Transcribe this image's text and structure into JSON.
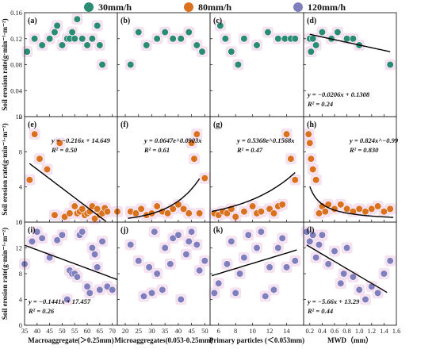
{
  "legend": [
    {
      "label": "30mm/h",
      "color": "#2a8c73"
    },
    {
      "label": "80mm/h",
      "color": "#d9711f"
    },
    {
      "label": "120mm/h",
      "color": "#7f7fbd"
    }
  ],
  "row_ylabels": [
    "Soil erosion rate(g·min⁻¹·m⁻²)",
    "Soil erosion rate(g·min⁻¹·m⁻²)",
    "Soil erosion rate(g·min⁻¹·m⁻²)"
  ],
  "col_xlabels": [
    "Macroaggregate(＞0.25mm)",
    "Microaggregates(0.053-0.25mm)",
    "Primary particles (＜0.053mm)",
    "MWD（mm）"
  ],
  "rows": [
    {
      "ylim": [
        0,
        0.16
      ],
      "yticks": [
        "0",
        "0.04",
        "0.08",
        "0.12",
        "0.16"
      ],
      "ytickvals": [
        0,
        0.04,
        0.08,
        0.12,
        0.16
      ]
    },
    {
      "ylim": [
        0,
        12
      ],
      "yticks": [
        "0",
        "4",
        "8",
        "12"
      ],
      "ytickvals": [
        0,
        4,
        8,
        12
      ]
    },
    {
      "ylim": [
        0,
        16
      ],
      "yticks": [
        "0",
        "4",
        "8",
        "12",
        "16"
      ],
      "ytickvals": [
        0,
        4,
        8,
        12,
        16
      ]
    }
  ],
  "cols": [
    {
      "xlim": [
        35,
        72
      ],
      "xticks": [
        "35",
        "40",
        "45",
        "50",
        "55",
        "60",
        "65",
        "70"
      ],
      "xtickvals": [
        35,
        40,
        45,
        50,
        55,
        60,
        65,
        70
      ]
    },
    {
      "xlim": [
        17,
        52
      ],
      "xticks": [
        "20",
        "25",
        "30",
        "35",
        "40",
        "45",
        "50"
      ],
      "xtickvals": [
        20,
        25,
        30,
        35,
        40,
        45,
        50
      ]
    },
    {
      "xlim": [
        5,
        16
      ],
      "xticks": [
        "6",
        "8",
        "10",
        "12",
        "14"
      ],
      "xtickvals": [
        6,
        8,
        10,
        12,
        14
      ]
    },
    {
      "xlim": [
        0.1,
        1.6
      ],
      "xticks": [
        "0.2",
        "0.4",
        "0.6",
        "0.8",
        "1.0",
        "1.2",
        "1.4",
        "1.6"
      ],
      "xtickvals": [
        0.2,
        0.4,
        0.6,
        0.8,
        1.0,
        1.2,
        1.4,
        1.6
      ]
    }
  ],
  "chart_data": [
    {
      "panel": "(a)",
      "type": "scatter",
      "series_color": "30mm/h",
      "x": [
        36,
        39,
        42,
        45,
        47,
        48,
        50,
        52,
        53,
        54,
        55,
        56,
        58,
        60,
        62,
        64,
        65,
        66
      ],
      "y": [
        0.1,
        0.12,
        0.11,
        0.12,
        0.13,
        0.14,
        0.11,
        0.12,
        0.12,
        0.13,
        0.12,
        0.15,
        0.12,
        0.11,
        0.12,
        0.14,
        0.11,
        0.08
      ],
      "equation": "",
      "r2": ""
    },
    {
      "panel": "(b)",
      "type": "scatter",
      "series_color": "30mm/h",
      "x": [
        22,
        25,
        28,
        32,
        35,
        38,
        41,
        44,
        47,
        49
      ],
      "y": [
        0.08,
        0.13,
        0.11,
        0.12,
        0.13,
        0.12,
        0.12,
        0.13,
        0.11,
        0.1
      ],
      "equation": "",
      "r2": ""
    },
    {
      "panel": "(c)",
      "type": "scatter",
      "series_color": "30mm/h",
      "x": [
        6.2,
        6.8,
        7.5,
        8.3,
        9.0,
        10.5,
        11.8,
        13.0,
        13.8,
        14.5,
        15.0
      ],
      "y": [
        0.14,
        0.12,
        0.1,
        0.08,
        0.12,
        0.11,
        0.13,
        0.12,
        0.12,
        0.12,
        0.12
      ],
      "equation": "",
      "r2": ""
    },
    {
      "panel": "(d)",
      "type": "scatter",
      "series_color": "30mm/h",
      "x": [
        0.2,
        0.22,
        0.25,
        0.3,
        0.4,
        0.55,
        0.65,
        0.8,
        0.9,
        1.0,
        1.5
      ],
      "y": [
        0.12,
        0.1,
        0.12,
        0.11,
        0.13,
        0.12,
        0.13,
        0.12,
        0.12,
        0.11,
        0.08
      ],
      "fit": {
        "kind": "linear",
        "a": -0.0206,
        "b": 0.1308,
        "range": [
          0.2,
          1.5
        ]
      },
      "equation": "y = −0.0206x + 0.1308",
      "r2": "R² = 0.24"
    },
    {
      "panel": "(e)",
      "type": "scatter",
      "series_color": "80mm/h",
      "x": [
        37,
        39,
        41,
        44,
        47,
        49,
        51,
        53,
        55,
        56,
        57,
        58,
        59,
        60,
        61,
        62,
        63,
        64,
        65,
        66,
        67,
        68,
        72
      ],
      "y": [
        4.8,
        10.0,
        7.2,
        6.0,
        0.8,
        9.0,
        0.6,
        1.0,
        1.8,
        1.0,
        1.2,
        1.5,
        0.8,
        1.0,
        1.2,
        1.8,
        0.4,
        1.5,
        0.8,
        1.0,
        1.6,
        1.2,
        1.2
      ],
      "fit": {
        "kind": "linear",
        "a": -0.216,
        "b": 14.649,
        "range": [
          37,
          68
        ]
      },
      "equation": "y = −0.216x + 14.649",
      "r2": "R² = 0.50"
    },
    {
      "panel": "(f)",
      "type": "scatter",
      "series_color": "80mm/h",
      "x": [
        22,
        24,
        26,
        28,
        30,
        32,
        34,
        36,
        38,
        40,
        42,
        44,
        45,
        46,
        47,
        48,
        50
      ],
      "y": [
        1.2,
        1.0,
        1.5,
        0.8,
        1.0,
        1.8,
        1.2,
        1.0,
        1.5,
        2.0,
        1.5,
        1.0,
        9.0,
        7.2,
        10.0,
        1.0,
        5.0
      ],
      "fit": {
        "kind": "exp",
        "a": 0.0647,
        "b": 0.0903,
        "range": [
          21,
          48
        ]
      },
      "equation": "y = 0.0647e^0.0903x",
      "r2": "R² = 0.61"
    },
    {
      "panel": "(g)",
      "type": "scatter",
      "series_color": "80mm/h",
      "x": [
        5.5,
        6.0,
        6.5,
        7.0,
        7.5,
        8.0,
        9.0,
        10.0,
        10.5,
        11.0,
        12.0,
        12.5,
        13.0,
        13.5,
        14.0,
        14.5,
        15.0
      ],
      "y": [
        1.0,
        0.8,
        1.2,
        1.0,
        1.5,
        0.6,
        1.2,
        1.8,
        1.0,
        1.2,
        1.5,
        1.0,
        1.8,
        2.0,
        10.0,
        7.2,
        4.8
      ],
      "fit": {
        "kind": "exp",
        "a": 0.5368,
        "b": 0.1568,
        "range": [
          5.2,
          15.0
        ]
      },
      "equation": "y = 0.5368e^0.1568x",
      "r2": "R² = 0.47"
    },
    {
      "panel": "(h)",
      "type": "scatter",
      "series_color": "80mm/h",
      "x": [
        0.18,
        0.2,
        0.22,
        0.25,
        0.3,
        0.35,
        0.4,
        0.45,
        0.5,
        0.6,
        0.7,
        0.8,
        0.9,
        1.0,
        1.1,
        1.2,
        1.3,
        1.4,
        1.5
      ],
      "y": [
        10.0,
        9.0,
        7.2,
        6.0,
        4.8,
        1.0,
        1.8,
        1.2,
        2.0,
        1.5,
        2.0,
        1.5,
        1.2,
        1.5,
        1.2,
        1.5,
        1.8,
        1.2,
        1.5
      ],
      "fit": {
        "kind": "power",
        "a": 0.824,
        "b": -0.99,
        "range": [
          0.2,
          1.55
        ]
      },
      "equation": "y = 0.824x^−0.99",
      "r2": "R² = 0.830"
    },
    {
      "panel": "(i)",
      "type": "scatter",
      "series_color": "120mm/h",
      "x": [
        35,
        38,
        40,
        42,
        45,
        48,
        50,
        52,
        53,
        54,
        55,
        56,
        57,
        58,
        60,
        61,
        62,
        63,
        64,
        65,
        66,
        68,
        70
      ],
      "y": [
        9.5,
        13.0,
        14.5,
        13.5,
        10.5,
        13.2,
        14.0,
        4.0,
        8.5,
        8.0,
        8.0,
        7.5,
        14.0,
        14.5,
        6.0,
        5.0,
        12.0,
        11.0,
        9.0,
        5.5,
        13.0,
        6.0,
        5.5
      ],
      "fit": {
        "kind": "linear",
        "a": -0.1441,
        "b": 17.457,
        "range": [
          35,
          72
        ]
      },
      "equation": "y = −0.1441x + 17.457",
      "r2": "R² = 0.26"
    },
    {
      "panel": "(j)",
      "type": "scatter",
      "series_color": "120mm/h",
      "x": [
        22,
        25,
        27,
        29,
        30,
        31,
        32,
        34,
        35,
        37,
        38,
        40,
        41,
        43,
        44,
        45,
        47,
        48,
        50
      ],
      "y": [
        12.5,
        10.0,
        4.5,
        9.0,
        5.0,
        14.5,
        8.0,
        5.5,
        12.0,
        9.5,
        13.5,
        14.0,
        4.0,
        11.0,
        13.0,
        14.5,
        12.5,
        8.5,
        10.0
      ],
      "equation": "",
      "r2": ""
    },
    {
      "panel": "(k)",
      "type": "scatter",
      "series_color": "120mm/h",
      "x": [
        5.5,
        6.0,
        7.0,
        7.5,
        8.0,
        8.5,
        9.0,
        9.5,
        10.5,
        11.0,
        11.5,
        12.0,
        12.5,
        13.0,
        13.5,
        14.0,
        15.0
      ],
      "y": [
        5.0,
        6.5,
        9.5,
        13.0,
        5.0,
        8.0,
        10.5,
        14.0,
        12.0,
        14.5,
        4.5,
        9.0,
        5.5,
        12.0,
        13.5,
        9.0,
        10.0
      ],
      "fit": {
        "kind": "linear",
        "a": 0.4,
        "b": 5.6,
        "range": [
          5.2,
          15.2
        ]
      },
      "equation": "",
      "r2": ""
    },
    {
      "panel": "(l)",
      "type": "scatter",
      "series_color": "120mm/h",
      "x": [
        0.15,
        0.2,
        0.25,
        0.3,
        0.35,
        0.4,
        0.5,
        0.6,
        0.7,
        0.75,
        0.8,
        0.9,
        1.0,
        1.1,
        1.2,
        1.3,
        1.4,
        1.5
      ],
      "y": [
        14.5,
        13.0,
        14.0,
        10.5,
        12.5,
        14.0,
        9.5,
        11.5,
        6.5,
        8.0,
        12.0,
        7.5,
        5.5,
        4.0,
        6.0,
        5.0,
        8.0,
        10.0
      ],
      "fit": {
        "kind": "linear",
        "a": -5.66,
        "b": 13.29,
        "range": [
          0.15,
          1.45
        ]
      },
      "equation": "y = −5.66x + 13.29",
      "r2": "R² = 0.44"
    }
  ]
}
